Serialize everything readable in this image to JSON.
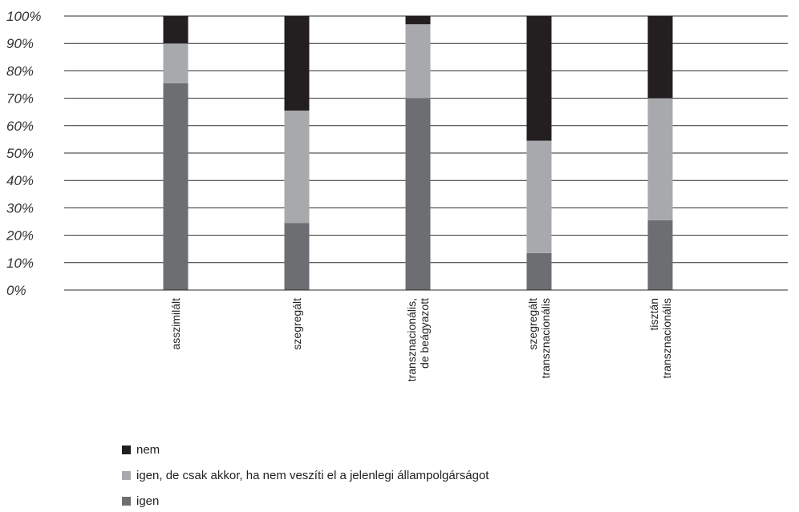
{
  "chart_data": {
    "type": "bar",
    "stacked": true,
    "orientation": "vertical",
    "title": "",
    "xlabel": "",
    "ylabel": "",
    "ylim": [
      0,
      100
    ],
    "y_ticks": [
      "0%",
      "10%",
      "20%",
      "30%",
      "40%",
      "50%",
      "60%",
      "70%",
      "80%",
      "90%",
      "100%"
    ],
    "grid": true,
    "legend_position": "bottom-left",
    "categories": [
      [
        "asszimilált"
      ],
      [
        "szegregált"
      ],
      [
        "transznacionális,",
        "de beágyazott"
      ],
      [
        "szegregált",
        "transznacionális"
      ],
      [
        "tisztán",
        "transznacionális"
      ]
    ],
    "series": [
      {
        "name": "igen",
        "color": "#6d6e71",
        "values": [
          75.5,
          24.5,
          70,
          13.5,
          25.5
        ]
      },
      {
        "name": "igen, de csak akkor, ha nem veszíti el a jelenlegi állampolgárságot",
        "color": "#a7a9ac",
        "values": [
          14.5,
          41,
          27,
          41,
          44.5
        ]
      },
      {
        "name": "nem",
        "color": "#231f20",
        "values": [
          10,
          34.5,
          3,
          45.5,
          30
        ]
      }
    ],
    "legend_order": [
      "nem",
      "igen, de csak akkor, ha nem veszíti el a jelenlegi állampolgárságot",
      "igen"
    ]
  }
}
